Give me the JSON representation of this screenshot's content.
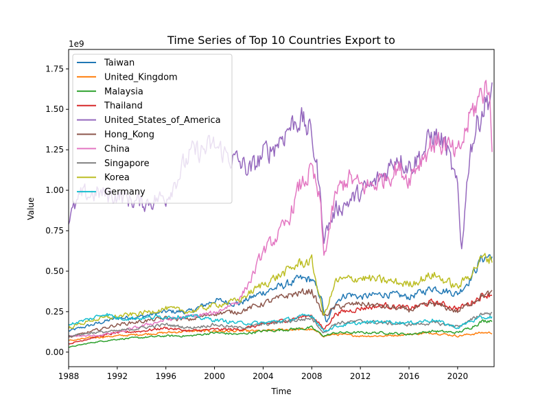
{
  "chart_data": {
    "type": "line",
    "title": "Time Series of Top 10 Countries Export to",
    "xlabel": "Time",
    "ylabel": "Value",
    "y_offset_label": "1e9",
    "xlim": [
      1988,
      2023
    ],
    "ylim": [
      -0.09,
      1.87
    ],
    "x_ticks": [
      1988,
      1992,
      1996,
      2000,
      2004,
      2008,
      2012,
      2016,
      2020
    ],
    "y_ticks": [
      0.0,
      0.25,
      0.5,
      0.75,
      1.0,
      1.25,
      1.5,
      1.75
    ],
    "y_tick_labels": [
      "0.00",
      "0.25",
      "0.50",
      "0.75",
      "1.00",
      "1.25",
      "1.50",
      "1.75"
    ],
    "legend_position": "upper-left",
    "grid": false,
    "noise_amplitude_fraction": 0.06,
    "series": [
      {
        "name": "Taiwan",
        "color": "#1f77b4",
        "points": [
          [
            1988,
            0.13
          ],
          [
            1990,
            0.17
          ],
          [
            1992,
            0.21
          ],
          [
            1994,
            0.22
          ],
          [
            1996,
            0.25
          ],
          [
            1998,
            0.25
          ],
          [
            2000,
            0.32
          ],
          [
            2002,
            0.3
          ],
          [
            2004,
            0.37
          ],
          [
            2006,
            0.42
          ],
          [
            2007,
            0.45
          ],
          [
            2008,
            0.45
          ],
          [
            2008.8,
            0.33
          ],
          [
            2009.2,
            0.17
          ],
          [
            2010,
            0.32
          ],
          [
            2011,
            0.36
          ],
          [
            2012,
            0.34
          ],
          [
            2014,
            0.36
          ],
          [
            2016,
            0.34
          ],
          [
            2018,
            0.4
          ],
          [
            2020,
            0.36
          ],
          [
            2021,
            0.45
          ],
          [
            2022,
            0.58
          ],
          [
            2022.9,
            0.6
          ]
        ]
      },
      {
        "name": "United_Kingdom",
        "color": "#ff7f0e",
        "points": [
          [
            1988,
            0.07
          ],
          [
            1990,
            0.09
          ],
          [
            1992,
            0.1
          ],
          [
            1994,
            0.11
          ],
          [
            1996,
            0.12
          ],
          [
            1998,
            0.13
          ],
          [
            2000,
            0.13
          ],
          [
            2002,
            0.13
          ],
          [
            2004,
            0.13
          ],
          [
            2006,
            0.14
          ],
          [
            2008,
            0.14
          ],
          [
            2009,
            0.1
          ],
          [
            2010,
            0.11
          ],
          [
            2012,
            0.1
          ],
          [
            2014,
            0.1
          ],
          [
            2016,
            0.11
          ],
          [
            2018,
            0.12
          ],
          [
            2020,
            0.1
          ],
          [
            2021,
            0.11
          ],
          [
            2022,
            0.12
          ],
          [
            2022.9,
            0.12
          ]
        ]
      },
      {
        "name": "Malaysia",
        "color": "#2ca02c",
        "points": [
          [
            1988,
            0.03
          ],
          [
            1990,
            0.06
          ],
          [
            1992,
            0.08
          ],
          [
            1994,
            0.09
          ],
          [
            1996,
            0.1
          ],
          [
            1998,
            0.1
          ],
          [
            2000,
            0.12
          ],
          [
            2002,
            0.11
          ],
          [
            2004,
            0.13
          ],
          [
            2006,
            0.14
          ],
          [
            2008,
            0.15
          ],
          [
            2009,
            0.1
          ],
          [
            2010,
            0.12
          ],
          [
            2012,
            0.12
          ],
          [
            2014,
            0.12
          ],
          [
            2016,
            0.11
          ],
          [
            2018,
            0.13
          ],
          [
            2020,
            0.12
          ],
          [
            2021,
            0.15
          ],
          [
            2022,
            0.19
          ],
          [
            2022.9,
            0.2
          ]
        ]
      },
      {
        "name": "Thailand",
        "color": "#d62728",
        "points": [
          [
            1988,
            0.05
          ],
          [
            1990,
            0.09
          ],
          [
            1992,
            0.12
          ],
          [
            1994,
            0.13
          ],
          [
            1996,
            0.15
          ],
          [
            1998,
            0.13
          ],
          [
            2000,
            0.14
          ],
          [
            2002,
            0.14
          ],
          [
            2004,
            0.17
          ],
          [
            2006,
            0.2
          ],
          [
            2008,
            0.23
          ],
          [
            2009,
            0.14
          ],
          [
            2010,
            0.24
          ],
          [
            2012,
            0.27
          ],
          [
            2014,
            0.29
          ],
          [
            2016,
            0.27
          ],
          [
            2018,
            0.31
          ],
          [
            2020,
            0.27
          ],
          [
            2021,
            0.3
          ],
          [
            2022,
            0.35
          ],
          [
            2022.9,
            0.36
          ]
        ]
      },
      {
        "name": "United_States_of_America",
        "color": "#9467bd",
        "points": [
          [
            1988,
            0.82
          ],
          [
            1989,
            0.96
          ],
          [
            1990,
            0.98
          ],
          [
            1992,
            0.97
          ],
          [
            1994,
            0.92
          ],
          [
            1996,
            0.96
          ],
          [
            1998,
            1.22
          ],
          [
            2000,
            1.27
          ],
          [
            2002,
            1.17
          ],
          [
            2003,
            1.12
          ],
          [
            2004,
            1.22
          ],
          [
            2005,
            1.28
          ],
          [
            2006,
            1.38
          ],
          [
            2007,
            1.45
          ],
          [
            2008,
            1.34
          ],
          [
            2008.5,
            1.1
          ],
          [
            2009,
            0.72
          ],
          [
            2010,
            0.88
          ],
          [
            2011,
            0.93
          ],
          [
            2012,
            0.98
          ],
          [
            2013,
            1.03
          ],
          [
            2014,
            1.1
          ],
          [
            2015,
            1.22
          ],
          [
            2016,
            1.15
          ],
          [
            2017,
            1.22
          ],
          [
            2018,
            1.35
          ],
          [
            2019,
            1.28
          ],
          [
            2020,
            1.0
          ],
          [
            2020.3,
            0.62
          ],
          [
            2021,
            1.25
          ],
          [
            2022,
            1.5
          ],
          [
            2022.9,
            1.62
          ]
        ]
      },
      {
        "name": "Hong_Kong",
        "color": "#8c564b",
        "points": [
          [
            1988,
            0.09
          ],
          [
            1990,
            0.13
          ],
          [
            1992,
            0.17
          ],
          [
            1994,
            0.19
          ],
          [
            1996,
            0.21
          ],
          [
            1998,
            0.2
          ],
          [
            2000,
            0.24
          ],
          [
            2002,
            0.25
          ],
          [
            2004,
            0.3
          ],
          [
            2006,
            0.35
          ],
          [
            2008,
            0.38
          ],
          [
            2009,
            0.22
          ],
          [
            2010,
            0.28
          ],
          [
            2012,
            0.3
          ],
          [
            2014,
            0.28
          ],
          [
            2016,
            0.26
          ],
          [
            2018,
            0.3
          ],
          [
            2020,
            0.25
          ],
          [
            2021,
            0.3
          ],
          [
            2022,
            0.35
          ],
          [
            2022.9,
            0.36
          ]
        ]
      },
      {
        "name": "China",
        "color": "#e377c2",
        "points": [
          [
            1988,
            0.1
          ],
          [
            1990,
            0.1
          ],
          [
            1992,
            0.12
          ],
          [
            1994,
            0.16
          ],
          [
            1996,
            0.2
          ],
          [
            1998,
            0.22
          ],
          [
            2000,
            0.24
          ],
          [
            2002,
            0.32
          ],
          [
            2003,
            0.45
          ],
          [
            2004,
            0.62
          ],
          [
            2005,
            0.7
          ],
          [
            2006,
            0.8
          ],
          [
            2007,
            1.02
          ],
          [
            2008,
            1.12
          ],
          [
            2008.7,
            0.92
          ],
          [
            2009,
            0.58
          ],
          [
            2010,
            0.98
          ],
          [
            2011,
            1.08
          ],
          [
            2012,
            1.02
          ],
          [
            2013,
            1.03
          ],
          [
            2014,
            1.08
          ],
          [
            2015,
            1.14
          ],
          [
            2016,
            1.08
          ],
          [
            2017,
            1.2
          ],
          [
            2018,
            1.3
          ],
          [
            2019,
            1.28
          ],
          [
            2020,
            1.2
          ],
          [
            2021,
            1.45
          ],
          [
            2022,
            1.6
          ],
          [
            2022.5,
            1.68
          ],
          [
            2022.9,
            1.2
          ]
        ]
      },
      {
        "name": "Singapore",
        "color": "#7f7f7f",
        "points": [
          [
            1988,
            0.1
          ],
          [
            1990,
            0.12
          ],
          [
            1992,
            0.13
          ],
          [
            1994,
            0.15
          ],
          [
            1996,
            0.17
          ],
          [
            1998,
            0.15
          ],
          [
            2000,
            0.17
          ],
          [
            2002,
            0.15
          ],
          [
            2004,
            0.17
          ],
          [
            2006,
            0.19
          ],
          [
            2008,
            0.21
          ],
          [
            2009,
            0.12
          ],
          [
            2010,
            0.18
          ],
          [
            2012,
            0.19
          ],
          [
            2014,
            0.18
          ],
          [
            2016,
            0.17
          ],
          [
            2018,
            0.18
          ],
          [
            2020,
            0.16
          ],
          [
            2021,
            0.19
          ],
          [
            2022,
            0.24
          ],
          [
            2022.9,
            0.24
          ]
        ]
      },
      {
        "name": "Korea",
        "color": "#bcbd22",
        "points": [
          [
            1988,
            0.15
          ],
          [
            1990,
            0.2
          ],
          [
            1992,
            0.22
          ],
          [
            1994,
            0.24
          ],
          [
            1996,
            0.27
          ],
          [
            1998,
            0.25
          ],
          [
            2000,
            0.29
          ],
          [
            2002,
            0.32
          ],
          [
            2004,
            0.42
          ],
          [
            2006,
            0.5
          ],
          [
            2007,
            0.55
          ],
          [
            2008,
            0.56
          ],
          [
            2009,
            0.22
          ],
          [
            2010,
            0.44
          ],
          [
            2012,
            0.46
          ],
          [
            2014,
            0.44
          ],
          [
            2016,
            0.42
          ],
          [
            2018,
            0.48
          ],
          [
            2020,
            0.4
          ],
          [
            2021,
            0.48
          ],
          [
            2022,
            0.58
          ],
          [
            2022.9,
            0.58
          ]
        ]
      },
      {
        "name": "Germany",
        "color": "#17becf",
        "points": [
          [
            1988,
            0.17
          ],
          [
            1990,
            0.21
          ],
          [
            1991,
            0.24
          ],
          [
            1992,
            0.21
          ],
          [
            1994,
            0.21
          ],
          [
            1996,
            0.22
          ],
          [
            1998,
            0.22
          ],
          [
            2000,
            0.2
          ],
          [
            2002,
            0.18
          ],
          [
            2004,
            0.18
          ],
          [
            2006,
            0.2
          ],
          [
            2008,
            0.23
          ],
          [
            2009,
            0.13
          ],
          [
            2010,
            0.16
          ],
          [
            2012,
            0.18
          ],
          [
            2014,
            0.19
          ],
          [
            2016,
            0.18
          ],
          [
            2018,
            0.2
          ],
          [
            2020,
            0.15
          ],
          [
            2021,
            0.19
          ],
          [
            2022,
            0.21
          ],
          [
            2022.9,
            0.22
          ]
        ]
      }
    ]
  }
}
